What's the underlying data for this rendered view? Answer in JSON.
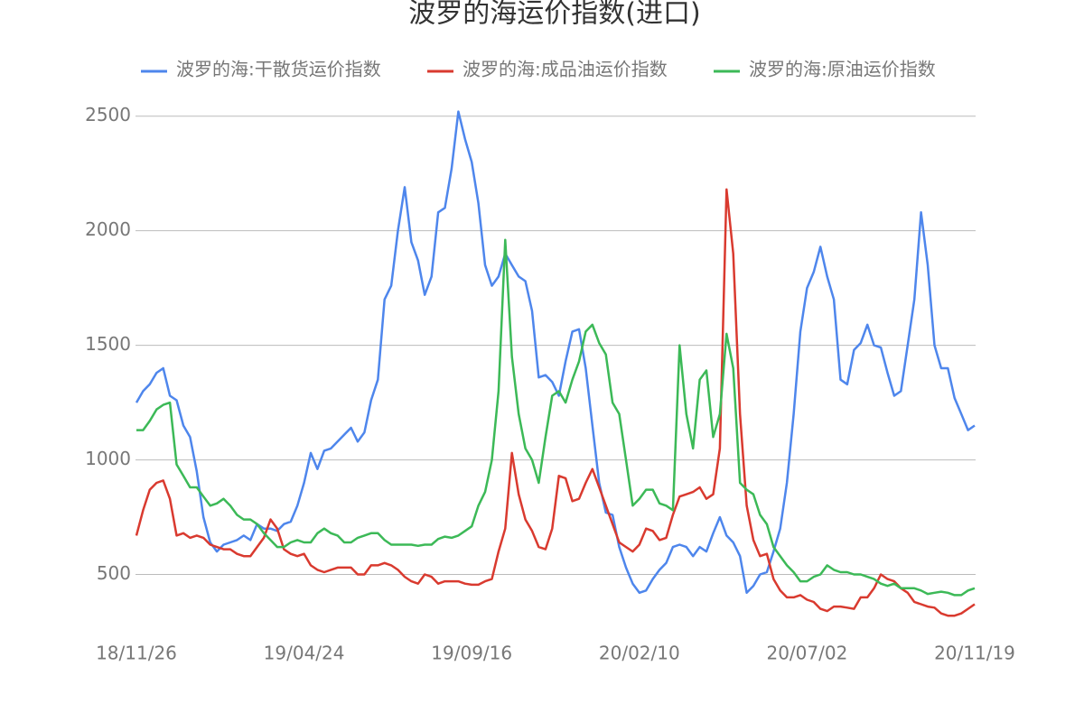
{
  "chart_data": {
    "type": "line",
    "title": "波罗的海运价指数(进口)",
    "categories": [
      "18/11/26",
      null,
      null,
      null,
      null,
      null,
      null,
      null,
      null,
      null,
      null,
      null,
      null,
      null,
      null,
      null,
      null,
      null,
      null,
      null,
      null,
      null,
      null,
      null,
      null,
      "19/04/24",
      null,
      null,
      null,
      null,
      null,
      null,
      null,
      null,
      null,
      null,
      null,
      null,
      null,
      null,
      null,
      null,
      null,
      null,
      null,
      null,
      null,
      null,
      null,
      null,
      "19/09/16",
      null,
      null,
      null,
      null,
      null,
      null,
      null,
      null,
      null,
      null,
      null,
      null,
      null,
      null,
      null,
      null,
      null,
      null,
      null,
      null,
      null,
      null,
      null,
      null,
      "20/02/10",
      null,
      null,
      null,
      null,
      null,
      null,
      null,
      null,
      null,
      null,
      null,
      null,
      null,
      null,
      null,
      null,
      null,
      null,
      null,
      null,
      null,
      null,
      null,
      null,
      "20/07/02",
      null,
      null,
      null,
      null,
      null,
      null,
      null,
      null,
      null,
      null,
      null,
      null,
      null,
      null,
      null,
      null,
      null,
      null,
      null,
      null,
      null,
      null,
      null,
      null,
      "20/11/19"
    ],
    "series": [
      {
        "name": "波罗的海:干散货运价指数",
        "color": "#4e86ec",
        "values": [
          1250,
          1300,
          1330,
          1380,
          1400,
          1280,
          1260,
          1150,
          1100,
          950,
          750,
          640,
          600,
          630,
          640,
          650,
          670,
          650,
          720,
          700,
          700,
          690,
          720,
          730,
          800,
          900,
          1030,
          960,
          1040,
          1050,
          1080,
          1110,
          1140,
          1080,
          1120,
          1260,
          1350,
          1700,
          1760,
          2000,
          2190,
          1950,
          1870,
          1720,
          1800,
          2080,
          2100,
          2270,
          2520,
          2400,
          2300,
          2120,
          1850,
          1760,
          1800,
          1900,
          1850,
          1800,
          1780,
          1650,
          1360,
          1370,
          1340,
          1280,
          1430,
          1560,
          1570,
          1400,
          1150,
          900,
          770,
          760,
          620,
          530,
          460,
          420,
          430,
          480,
          520,
          550,
          620,
          630,
          620,
          580,
          620,
          600,
          680,
          750,
          670,
          640,
          580,
          420,
          450,
          500,
          510,
          600,
          700,
          900,
          1200,
          1560,
          1750,
          1820,
          1930,
          1800,
          1700,
          1350,
          1330,
          1480,
          1510,
          1590,
          1500,
          1490,
          1380,
          1280,
          1300,
          1500,
          1700,
          2080,
          1850,
          1500,
          1400,
          1400,
          1270,
          1200,
          1130,
          1150
        ]
      },
      {
        "name": "波罗的海:成品油运价指数",
        "color": "#d93a2f",
        "values": [
          670,
          780,
          870,
          900,
          910,
          830,
          670,
          680,
          660,
          670,
          660,
          630,
          620,
          610,
          610,
          590,
          580,
          580,
          620,
          660,
          740,
          700,
          610,
          590,
          580,
          590,
          540,
          520,
          510,
          520,
          530,
          530,
          530,
          500,
          500,
          540,
          540,
          550,
          540,
          520,
          490,
          470,
          460,
          500,
          490,
          460,
          470,
          470,
          470,
          460,
          455,
          455,
          470,
          480,
          600,
          700,
          1030,
          850,
          740,
          690,
          620,
          610,
          700,
          930,
          920,
          820,
          830,
          900,
          960,
          880,
          800,
          720,
          640,
          620,
          600,
          630,
          700,
          690,
          650,
          660,
          760,
          840,
          850,
          860,
          880,
          830,
          850,
          1050,
          2180,
          1900,
          1200,
          800,
          650,
          580,
          590,
          480,
          430,
          400,
          400,
          410,
          390,
          380,
          350,
          340,
          360,
          360,
          355,
          350,
          400,
          400,
          440,
          500,
          480,
          470,
          440,
          420,
          380,
          370,
          360,
          355,
          330,
          320,
          320,
          330,
          350,
          370
        ]
      },
      {
        "name": "波罗的海:原油运价指数",
        "color": "#3cb957",
        "values": [
          1130,
          1130,
          1170,
          1220,
          1240,
          1250,
          980,
          930,
          880,
          880,
          840,
          800,
          810,
          830,
          800,
          760,
          740,
          740,
          720,
          680,
          650,
          620,
          620,
          640,
          650,
          640,
          640,
          680,
          700,
          680,
          670,
          640,
          640,
          660,
          670,
          680,
          680,
          650,
          630,
          630,
          630,
          630,
          625,
          630,
          630,
          655,
          665,
          660,
          670,
          690,
          710,
          800,
          860,
          1000,
          1300,
          1960,
          1450,
          1200,
          1050,
          1000,
          900,
          1100,
          1280,
          1300,
          1250,
          1350,
          1430,
          1560,
          1590,
          1510,
          1460,
          1250,
          1200,
          1000,
          800,
          830,
          870,
          870,
          810,
          800,
          780,
          1500,
          1200,
          1050,
          1350,
          1390,
          1100,
          1200,
          1550,
          1400,
          900,
          870,
          850,
          760,
          720,
          620,
          580,
          540,
          510,
          470,
          470,
          490,
          500,
          540,
          520,
          510,
          510,
          500,
          500,
          490,
          480,
          460,
          450,
          460,
          440,
          440,
          440,
          430,
          415,
          420,
          425,
          420,
          410,
          410,
          430,
          440
        ]
      }
    ],
    "ylim": [
      250,
      2550
    ],
    "yticks": [
      500,
      1000,
      1500,
      2000,
      2500
    ],
    "grid": true,
    "legend": "top"
  }
}
